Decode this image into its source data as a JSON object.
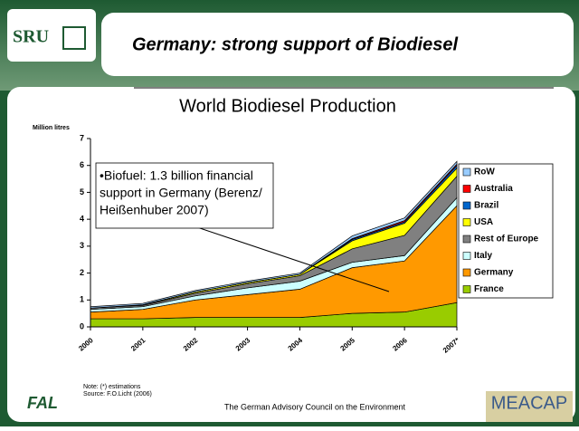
{
  "header": {
    "title": "Germany: strong support of Biodiesel",
    "logo": "SRU"
  },
  "chart_data": {
    "type": "stacked_area",
    "title": "World Biodiesel Production",
    "y_label": "Million litres",
    "categories": [
      "2000",
      "2001",
      "2002",
      "2003",
      "2004",
      "2005",
      "2006",
      "2007*"
    ],
    "ylim": [
      0,
      7
    ],
    "yticks": [
      0,
      1,
      2,
      3,
      4,
      5,
      6,
      7
    ],
    "series": [
      {
        "name": "France",
        "color": "#99cc00",
        "values": [
          0.3,
          0.3,
          0.35,
          0.35,
          0.35,
          0.5,
          0.55,
          0.9
        ]
      },
      {
        "name": "Germany",
        "color": "#ff9900",
        "values": [
          0.25,
          0.35,
          0.65,
          0.85,
          1.05,
          1.7,
          1.9,
          3.6
        ]
      },
      {
        "name": "Italy",
        "color": "#ccffff",
        "values": [
          0.1,
          0.1,
          0.15,
          0.25,
          0.3,
          0.2,
          0.2,
          0.3
        ]
      },
      {
        "name": "Rest of Europe",
        "color": "#808080",
        "values": [
          0.05,
          0.05,
          0.1,
          0.15,
          0.2,
          0.5,
          0.75,
          0.8
        ]
      },
      {
        "name": "USA",
        "color": "#ffff00",
        "values": [
          0.0,
          0.02,
          0.05,
          0.05,
          0.05,
          0.3,
          0.45,
          0.3
        ]
      },
      {
        "name": "Brazil",
        "color": "#0066cc",
        "values": [
          0,
          0,
          0,
          0,
          0,
          0.05,
          0.05,
          0.1
        ]
      },
      {
        "name": "Australia",
        "color": "#ff0000",
        "values": [
          0,
          0,
          0,
          0,
          0,
          0.03,
          0.05,
          0.05
        ]
      },
      {
        "name": "RoW",
        "color": "#99ccff",
        "values": [
          0.05,
          0.05,
          0.05,
          0.05,
          0.05,
          0.1,
          0.1,
          0.1
        ]
      }
    ],
    "annotation": [
      "•Biofuel: 1.3 billion financial",
      "support in Germany (Berenz/",
      "Heißenhuber 2007)"
    ],
    "notes": [
      "Note: (*) estimations",
      "Source: F.O.Licht (2006)"
    ]
  },
  "footer": {
    "text": "The German Advisory Council on the Environment",
    "left_logo": "FAL",
    "right_logo": "MEACAP"
  }
}
